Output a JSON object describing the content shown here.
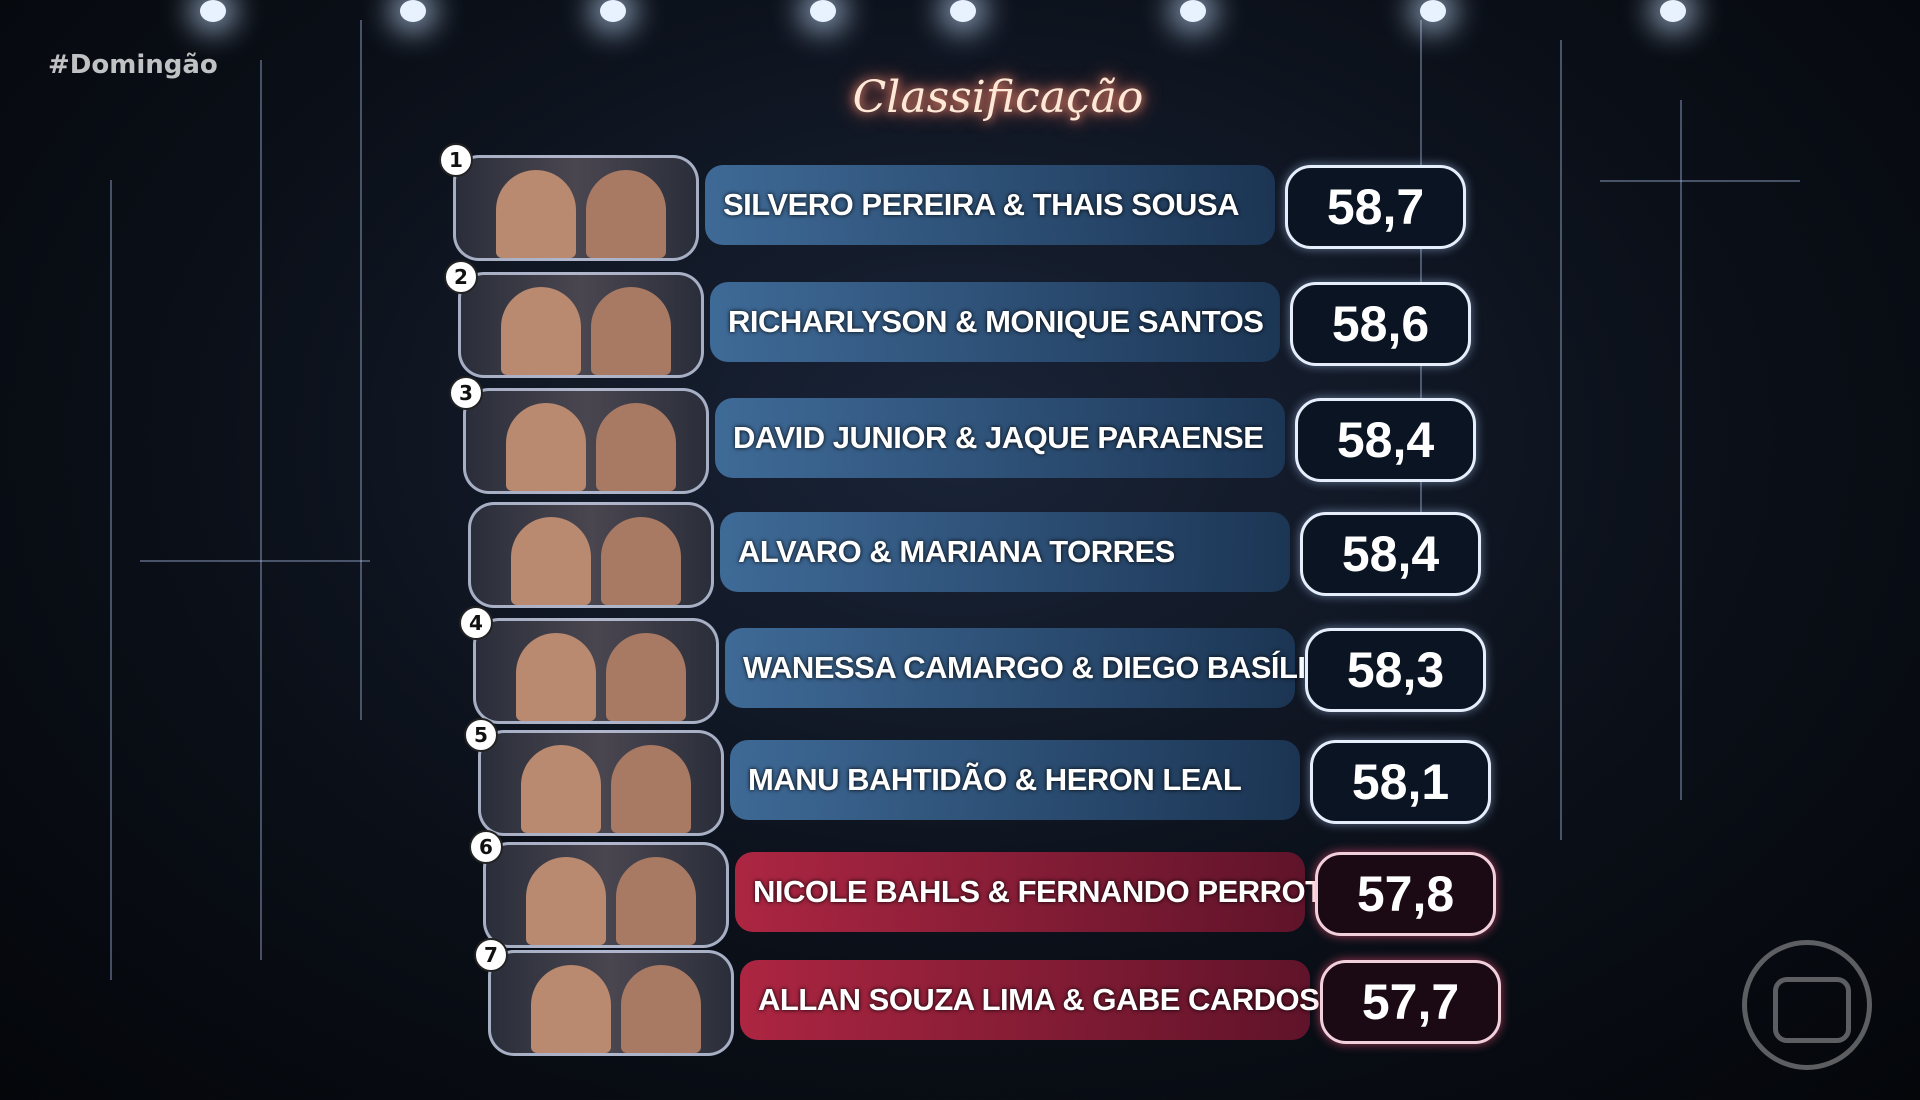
{
  "hashtag": "#Domingão",
  "title": "Classificação",
  "colors": {
    "safe_banner": "#3e6f9e",
    "danger_banner": "#b8284a",
    "title_glow": "#ff7a6a"
  },
  "ranking": [
    {
      "rank": "1",
      "name": "SILVERO PEREIRA & THAIS SOUSA",
      "score": "58,7",
      "zone": "safe"
    },
    {
      "rank": "2",
      "name": "RICHARLYSON & MONIQUE SANTOS",
      "score": "58,6",
      "zone": "safe"
    },
    {
      "rank": "3",
      "name": "DAVID JUNIOR & JAQUE PARAENSE",
      "score": "58,4",
      "zone": "safe"
    },
    {
      "rank": "",
      "name": "ALVARO & MARIANA TORRES",
      "score": "58,4",
      "zone": "safe"
    },
    {
      "rank": "4",
      "name": "WANESSA CAMARGO & DIEGO BASÍLIO",
      "score": "58,3",
      "zone": "safe"
    },
    {
      "rank": "5",
      "name": "MANU BAHTIDÃO & HERON LEAL",
      "score": "58,1",
      "zone": "safe"
    },
    {
      "rank": "6",
      "name": "NICOLE BAHLS & FERNANDO PERROTTI",
      "score": "57,8",
      "zone": "danger"
    },
    {
      "rank": "7",
      "name": "ALLAN SOUZA LIMA & GABE CARDOSO",
      "score": "57,7",
      "zone": "danger"
    }
  ],
  "logo": "globo-logo"
}
